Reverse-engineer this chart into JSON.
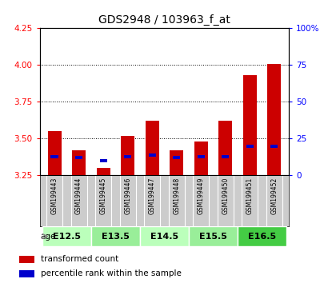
{
  "title": "GDS2948 / 103963_f_at",
  "samples": [
    "GSM199443",
    "GSM199444",
    "GSM199445",
    "GSM199446",
    "GSM199447",
    "GSM199448",
    "GSM199449",
    "GSM199450",
    "GSM199451",
    "GSM199452"
  ],
  "transformed_count": [
    3.55,
    3.42,
    3.3,
    3.52,
    3.62,
    3.42,
    3.48,
    3.62,
    3.93,
    4.01
  ],
  "percentile_rank": [
    13,
    12,
    10,
    13,
    14,
    12,
    13,
    13,
    20,
    20
  ],
  "age_groups": [
    {
      "label": "E12.5",
      "start": 0,
      "end": 2,
      "color": "#bbffbb"
    },
    {
      "label": "E13.5",
      "start": 2,
      "end": 4,
      "color": "#99ee99"
    },
    {
      "label": "E14.5",
      "start": 4,
      "end": 6,
      "color": "#bbffbb"
    },
    {
      "label": "E15.5",
      "start": 6,
      "end": 8,
      "color": "#99ee99"
    },
    {
      "label": "E16.5",
      "start": 8,
      "end": 10,
      "color": "#44cc44"
    }
  ],
  "ylim_left": [
    3.25,
    4.25
  ],
  "ylim_right": [
    0,
    100
  ],
  "yticks_left": [
    3.25,
    3.5,
    3.75,
    4.0,
    4.25
  ],
  "yticks_right": [
    0,
    25,
    50,
    75,
    100
  ],
  "bar_color": "#cc0000",
  "percentile_color": "#0000cc",
  "bar_width": 0.55,
  "legend_items": [
    "transformed count",
    "percentile rank within the sample"
  ],
  "background_plot": "#ffffff",
  "background_labels": "#cccccc"
}
